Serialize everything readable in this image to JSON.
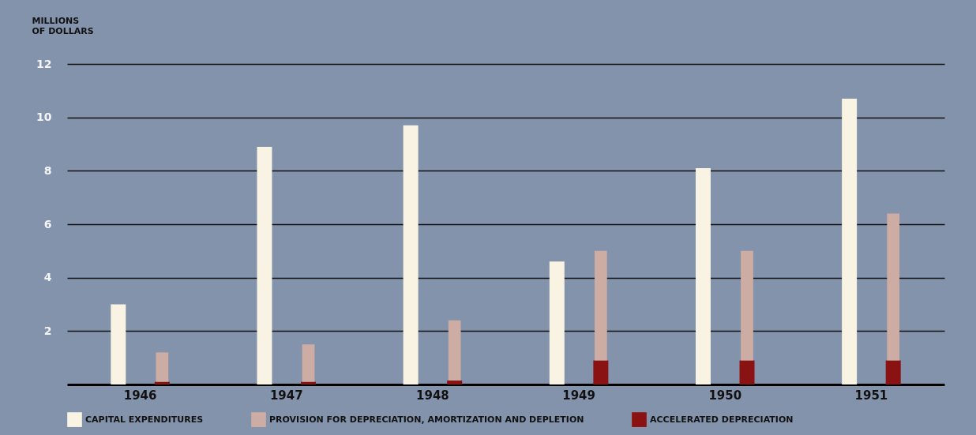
{
  "chart_data": {
    "type": "bar",
    "ylabel": "MILLIONS OF DOLLARS",
    "categories": [
      "1946",
      "1947",
      "1948",
      "1949",
      "1950",
      "1951"
    ],
    "series": [
      {
        "name": "CAPITAL EXPENDITURES",
        "color": "#f8f3e2",
        "values": [
          3.0,
          8.9,
          9.7,
          4.6,
          8.1,
          10.7
        ]
      },
      {
        "name": "ACCELERATED DEPRECIATION",
        "color": "#8a1212",
        "values": [
          0.1,
          0.1,
          0.15,
          0.9,
          0.9,
          0.9
        ]
      },
      {
        "name": "PROVISION FOR DEPRECIATION, AMORTIZATION AND DEPLETION",
        "color": "#cdaca4",
        "base": [
          0.1,
          0.1,
          0.15,
          0.9,
          0.9,
          0.9
        ],
        "values": [
          1.1,
          1.4,
          2.25,
          4.1,
          4.1,
          5.5
        ]
      }
    ],
    "ylim": [
      0,
      12
    ],
    "yticks": [
      2,
      4,
      6,
      8,
      10,
      12
    ],
    "grid": "y",
    "legend": "bottom"
  }
}
